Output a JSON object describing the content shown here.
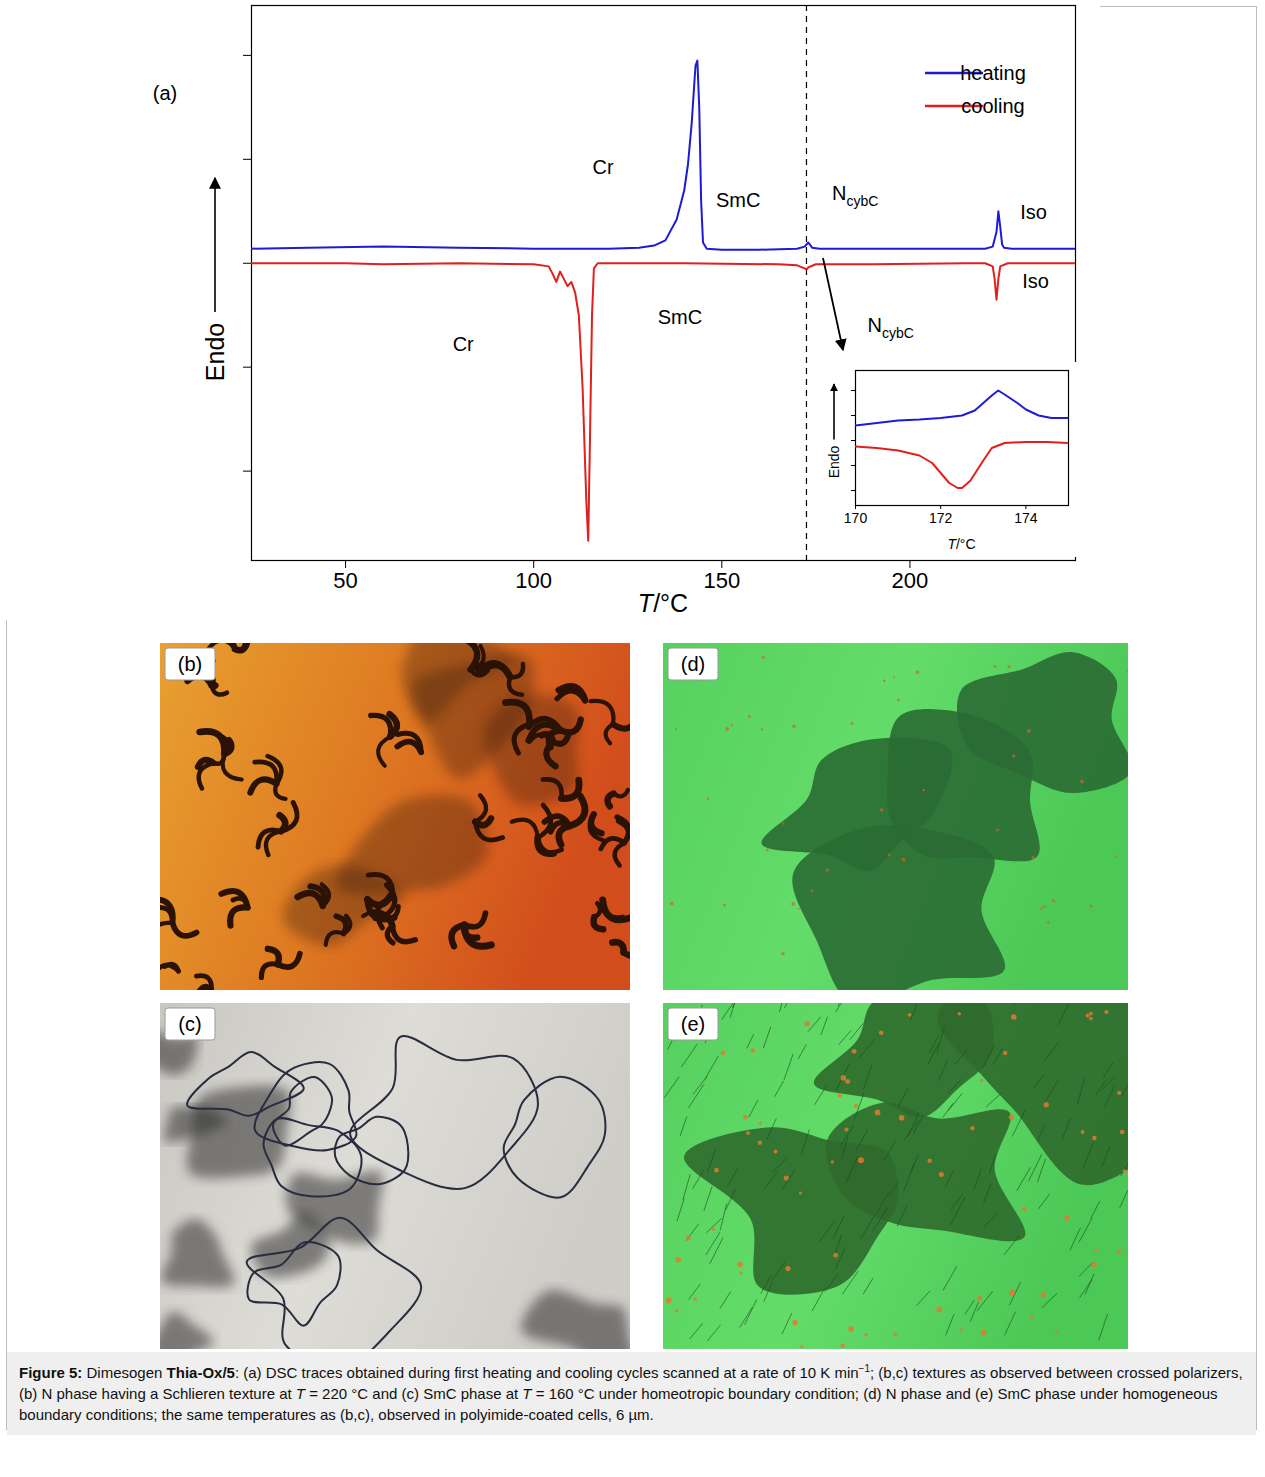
{
  "chart_data": [
    {
      "type": "line",
      "panel_label": "(a)",
      "x_label": "T/°C",
      "y_label": "Endo",
      "xlim": [
        25,
        244
      ],
      "xticks": [
        50,
        100,
        150,
        200
      ],
      "ylim": [
        -2.86,
        2.48
      ],
      "yticks": [
        -2,
        -1,
        0,
        1,
        2
      ],
      "tick_labels": "x",
      "legend": "top-right",
      "reference_line": {
        "x": 172.5,
        "line_style": "dashed"
      },
      "series": [
        {
          "name": "heating",
          "color": "#1c1cd6",
          "x": [
            25,
            40,
            60,
            80,
            100,
            120,
            128,
            132,
            135,
            138,
            140,
            141,
            142,
            143,
            143.5,
            144,
            144.5,
            145,
            146,
            150,
            160,
            170,
            172,
            173,
            174,
            176,
            190,
            210,
            220,
            222,
            223,
            223.5,
            224,
            224.5,
            225,
            227,
            235,
            244
          ],
          "values": [
            0.14,
            0.15,
            0.16,
            0.15,
            0.14,
            0.14,
            0.15,
            0.17,
            0.22,
            0.42,
            0.7,
            0.95,
            1.35,
            1.9,
            1.95,
            1.5,
            0.6,
            0.2,
            0.14,
            0.13,
            0.13,
            0.14,
            0.16,
            0.2,
            0.15,
            0.14,
            0.14,
            0.14,
            0.14,
            0.16,
            0.3,
            0.5,
            0.35,
            0.18,
            0.15,
            0.14,
            0.14,
            0.14
          ]
        },
        {
          "name": "cooling",
          "color": "#e0201c",
          "x": [
            25,
            50,
            60,
            80,
            100,
            104,
            105,
            106,
            107,
            108,
            109,
            110,
            111,
            112,
            113,
            114,
            114.5,
            115,
            115.5,
            116,
            117,
            120,
            140,
            165,
            170,
            172,
            172.5,
            173,
            175,
            190,
            215,
            220,
            222,
            222.5,
            223,
            223.5,
            224,
            226,
            235,
            244
          ],
          "values": [
            0,
            0,
            -0.01,
            0,
            -0.01,
            -0.03,
            -0.1,
            -0.18,
            -0.08,
            -0.15,
            -0.22,
            -0.18,
            -0.28,
            -0.5,
            -1.2,
            -2.3,
            -2.67,
            -1.6,
            -0.5,
            -0.05,
            0,
            0,
            0,
            -0.01,
            -0.02,
            -0.05,
            -0.06,
            -0.04,
            -0.01,
            -0.01,
            0,
            0,
            -0.03,
            -0.15,
            -0.35,
            -0.15,
            -0.03,
            0,
            0,
            0
          ]
        }
      ],
      "annotations": [
        {
          "text": "Cr",
          "x": 118.6,
          "y": 0.92
        },
        {
          "text": "SmC",
          "x": 154.5,
          "y": 0.6
        },
        {
          "text": "N",
          "subscript": "cybC",
          "x": 185.6,
          "y": 0.67
        },
        {
          "text": "Iso",
          "x": 233,
          "y": 0.49
        },
        {
          "text": "Cr",
          "x": 81.4,
          "y": -0.78
        },
        {
          "text": "SmC",
          "x": 139,
          "y": -0.52
        },
        {
          "text": "N",
          "subscript": "cybC",
          "x": 195,
          "y": -0.6
        },
        {
          "text": "Iso",
          "x": 233.5,
          "y": -0.18
        }
      ]
    },
    {
      "type": "line",
      "x_label": "T/°C",
      "y_label": "Endo",
      "xlim": [
        170,
        175
      ],
      "xticks": [
        170,
        172,
        174
      ],
      "ylim": [
        -1.3,
        1.4
      ],
      "yticks": [
        -1,
        -0.5,
        0,
        0.5,
        1
      ],
      "tick_labels": "x",
      "series": [
        {
          "color": "#1c1cd6",
          "x": [
            170,
            170.5,
            171,
            171.5,
            172,
            172.5,
            172.8,
            173,
            173.2,
            173.35,
            173.5,
            173.8,
            174,
            174.3,
            174.6,
            175
          ],
          "values": [
            0.3,
            0.35,
            0.4,
            0.42,
            0.45,
            0.5,
            0.6,
            0.75,
            0.9,
            1.0,
            0.92,
            0.75,
            0.62,
            0.5,
            0.45,
            0.45
          ]
        },
        {
          "color": "#e0201c",
          "x": [
            170,
            170.5,
            171,
            171.5,
            171.8,
            172,
            172.2,
            172.4,
            172.5,
            172.7,
            173,
            173.2,
            173.5,
            174,
            174.5,
            175
          ],
          "values": [
            -0.12,
            -0.15,
            -0.2,
            -0.3,
            -0.45,
            -0.65,
            -0.85,
            -0.95,
            -0.95,
            -0.8,
            -0.4,
            -0.15,
            -0.05,
            -0.03,
            -0.03,
            -0.05
          ]
        }
      ]
    }
  ],
  "panels": [
    {
      "label": "(b)"
    },
    {
      "label": "(c)"
    },
    {
      "label": "(d)"
    },
    {
      "label": "(e)"
    }
  ],
  "caption": [
    {
      "text": "Figure 5:",
      "style": "bold"
    },
    {
      "text": " Dimesogen "
    },
    {
      "text": "Thia-Ox/5",
      "style": "bold"
    },
    {
      "text": ": (a) DSC traces obtained during first heating and cooling cycles scanned at a rate of 10 K min"
    },
    {
      "text": "−1",
      "style": "superscript"
    },
    {
      "text": "; (b,c) textures as observed between crossed polarizers, (b) N phase having a Schlieren texture at "
    },
    {
      "text": "T",
      "style": "italic"
    },
    {
      "text": " = 220 °C and (c) SmC phase at "
    },
    {
      "text": "T",
      "style": "italic"
    },
    {
      "text": " = 160 °C under homeotropic boundary condition; (d) N phase and (e) SmC phase under homogeneous boundary conditions; the same temperatures as (b,c), observed in polyimide-coated cells, 6 µm."
    }
  ]
}
